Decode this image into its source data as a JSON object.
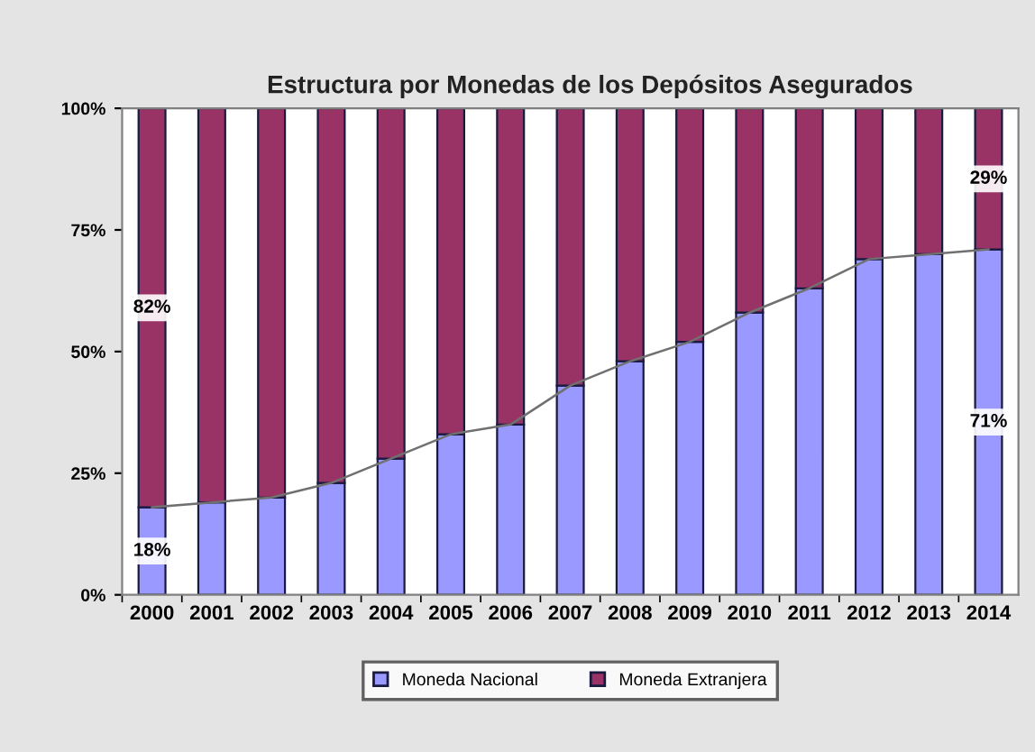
{
  "chart_data": {
    "type": "bar",
    "stacked": true,
    "title": "Estructura por Monedas de los Depósitos Asegurados",
    "categories": [
      "2000",
      "2001",
      "2002",
      "2003",
      "2004",
      "2005",
      "2006",
      "2007",
      "2008",
      "2009",
      "2010",
      "2011",
      "2012",
      "2013",
      "2014"
    ],
    "series": [
      {
        "name": "Moneda Nacional",
        "color": "#9999ff",
        "values": [
          18,
          19,
          20,
          23,
          28,
          33,
          35,
          43,
          48,
          52,
          58,
          63,
          69,
          70,
          71
        ],
        "value_labels": [
          "18%",
          null,
          null,
          null,
          null,
          null,
          null,
          null,
          null,
          null,
          null,
          null,
          null,
          null,
          "71%"
        ]
      },
      {
        "name": "Moneda Extranjera",
        "color": "#993366",
        "values": [
          82,
          81,
          80,
          77,
          72,
          67,
          65,
          57,
          52,
          48,
          42,
          37,
          31,
          30,
          29
        ],
        "value_labels": [
          "82%",
          null,
          null,
          null,
          null,
          null,
          null,
          null,
          null,
          null,
          null,
          null,
          null,
          null,
          "29%"
        ]
      },
      {
        "type": "line",
        "color": "#707070",
        "values": [
          18,
          19,
          20,
          23,
          28,
          33,
          35,
          43,
          48,
          52,
          58,
          63,
          69,
          70,
          71
        ]
      }
    ],
    "ylim": [
      0,
      100
    ],
    "yticks": [
      {
        "value": 0,
        "label": "0%"
      },
      {
        "value": 25,
        "label": "25%"
      },
      {
        "value": 50,
        "label": "50%"
      },
      {
        "value": 75,
        "label": "75%"
      },
      {
        "value": 100,
        "label": "100%"
      }
    ],
    "legend": "bottom",
    "grid": false
  }
}
